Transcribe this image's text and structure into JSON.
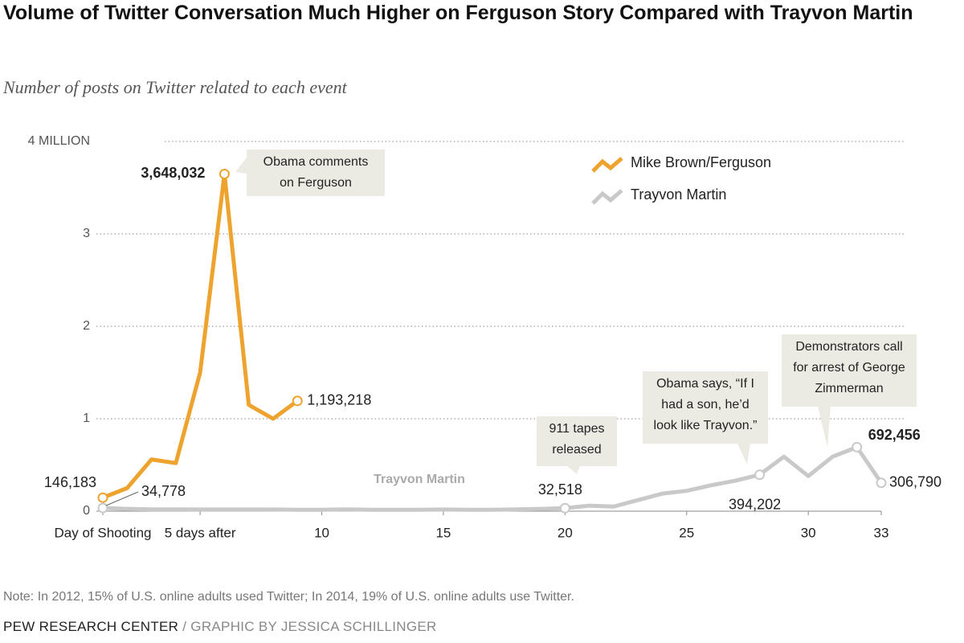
{
  "chart_data": {
    "type": "line",
    "title": "Volume of Twitter Conversation Much Higher on Ferguson Story Compared with Trayvon Martin",
    "subtitle": "Number of posts on Twitter related to each event",
    "note": "Note: In 2012, 15% of U.S. online adults used Twitter; In 2014, 19% of U.S. online adults use Twitter.",
    "source": [
      "PEW RESEARCH CENTER",
      "/ GRAPHIC BY JESSICA SCHILLINGER"
    ],
    "xlim": [
      1,
      33
    ],
    "xticks": [
      {
        "value": 1,
        "label": "Day of Shooting"
      },
      {
        "value": 5,
        "label": "5 days after"
      },
      10,
      15,
      20,
      25,
      30,
      33
    ],
    "ylim": [
      0,
      4000000
    ],
    "yticks": [
      0,
      {
        "value": 1000000,
        "label": "1"
      },
      {
        "value": 2000000,
        "label": "2"
      },
      {
        "value": 3000000,
        "label": "3"
      },
      {
        "value": 4000000,
        "label": "4 MILLION"
      }
    ],
    "grid": true,
    "legend": "top-right",
    "series": [
      {
        "name": "Mike Brown/Ferguson",
        "color": "#eea32f",
        "x": [
          1,
          2,
          3,
          4,
          5,
          6,
          7,
          8,
          9
        ],
        "values": [
          146183,
          250000,
          560000,
          520000,
          1500000,
          3648032,
          1150000,
          1000000,
          1193218
        ],
        "value_labels": [
          "146,183",
          null,
          null,
          null,
          null,
          "3,648,032",
          null,
          null,
          "1,193,218"
        ]
      },
      {
        "name": "Trayvon Martin",
        "color": "#c9c9c9",
        "x": [
          1,
          2,
          3,
          4,
          5,
          6,
          7,
          8,
          9,
          10,
          11,
          12,
          13,
          14,
          15,
          16,
          17,
          18,
          19,
          20,
          21,
          22,
          23,
          24,
          25,
          26,
          27,
          28,
          29,
          30,
          31,
          32,
          33
        ],
        "values": [
          34778,
          25000,
          20000,
          20000,
          18000,
          18000,
          18000,
          18000,
          15000,
          15000,
          20000,
          15000,
          15000,
          15000,
          18000,
          15000,
          15000,
          20000,
          25000,
          32518,
          60000,
          50000,
          120000,
          190000,
          220000,
          280000,
          330000,
          394202,
          590000,
          380000,
          590000,
          692456,
          306790
        ],
        "value_labels": [
          "34,778",
          null,
          null,
          null,
          null,
          null,
          null,
          null,
          null,
          null,
          null,
          null,
          null,
          null,
          null,
          null,
          null,
          null,
          null,
          "32,518",
          null,
          null,
          null,
          null,
          null,
          null,
          null,
          "394,202",
          null,
          null,
          null,
          "692,456",
          "306,790"
        ]
      }
    ],
    "annotations": [
      {
        "text": [
          "Obama comments",
          "on Ferguson"
        ]
      },
      {
        "text": [
          "911 tapes",
          "released"
        ]
      },
      {
        "text": [
          "Obama says, “If I",
          "had a son, he’d",
          "look like Trayvon.”"
        ]
      },
      {
        "text": [
          "Demonstrators call",
          "for arrest of George",
          "Zimmerman"
        ]
      },
      {
        "text": [
          "Trayvon Martin"
        ]
      }
    ]
  }
}
